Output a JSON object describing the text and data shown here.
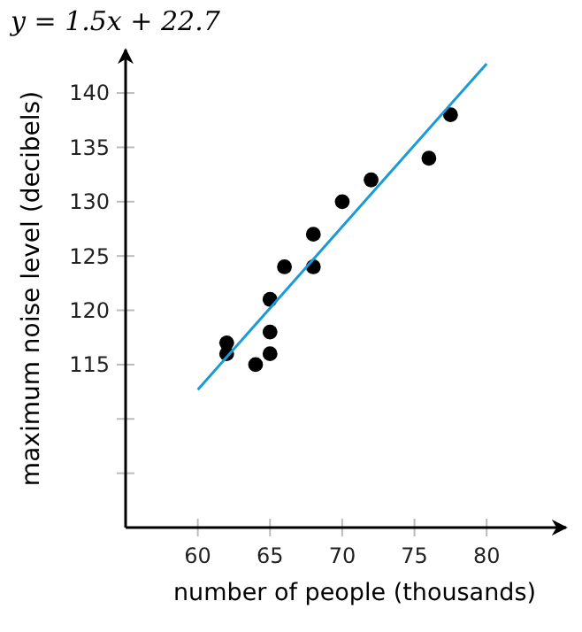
{
  "chart_data": {
    "type": "scatter",
    "title": "y = 1.5x + 22.7",
    "xlabel": "number of people (thousands)",
    "ylabel": "maximum noise level (decibels)",
    "xlim": [
      55,
      85.5
    ],
    "ylim": [
      100,
      144
    ],
    "xticks": [
      60,
      65,
      70,
      75,
      80
    ],
    "yticks": [
      {
        "value": 105,
        "label": null
      },
      {
        "value": 110,
        "label": null
      },
      115,
      120,
      125,
      130,
      135,
      140
    ],
    "grid": false,
    "marker": "circle",
    "series": [
      {
        "color": "#000000",
        "x": [
          62,
          62,
          64,
          65,
          65,
          65,
          66,
          68,
          68,
          70,
          72,
          76,
          77.5
        ],
        "values": [
          117,
          116,
          115,
          121,
          118,
          116,
          124,
          127,
          124,
          130,
          132,
          134,
          138
        ]
      },
      {
        "type": "line",
        "color": "#1a9bd7",
        "x": [
          60,
          80
        ],
        "values": [
          112.7,
          142.7
        ],
        "marker": "none"
      }
    ]
  }
}
